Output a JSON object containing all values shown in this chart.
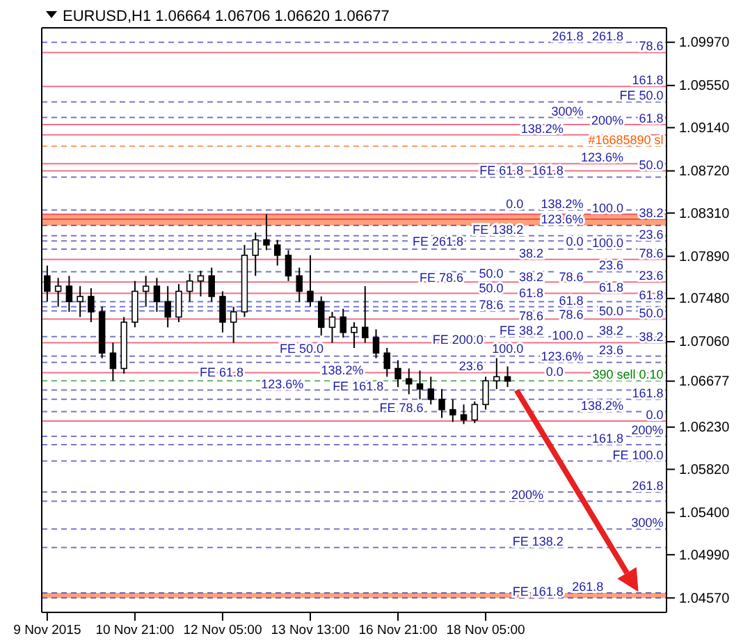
{
  "chart_data": {
    "type": "candlestick",
    "title": "EURUSD,H1  1.06664 1.06706 1.06620 1.06677",
    "categories": [
      "9 Nov 2015",
      null,
      null,
      null,
      null,
      null,
      null,
      null,
      "10 Nov 21:00",
      null,
      null,
      null,
      null,
      null,
      null,
      null,
      "12 Nov 05:00",
      null,
      null,
      null,
      null,
      null,
      null,
      null,
      "13 Nov 13:00",
      null,
      null,
      null,
      null,
      null,
      null,
      null,
      "16 Nov 21:00",
      null,
      null,
      null,
      null,
      null,
      null,
      null,
      "18 Nov 05:00",
      null,
      null,
      null,
      null,
      null,
      null,
      null,
      null,
      null,
      null,
      null,
      null,
      null,
      null,
      null,
      null
    ],
    "ohlc": [
      [
        1.077,
        1.078,
        1.0745,
        1.0755
      ],
      [
        1.0755,
        1.0768,
        1.074,
        1.076
      ],
      [
        1.076,
        1.077,
        1.0735,
        1.0745
      ],
      [
        1.0745,
        1.076,
        1.073,
        1.075
      ],
      [
        1.075,
        1.0758,
        1.0725,
        1.0735
      ],
      [
        1.0735,
        1.074,
        1.069,
        1.0695
      ],
      [
        1.0695,
        1.0705,
        1.0668,
        1.068
      ],
      [
        1.068,
        1.073,
        1.0675,
        1.0725
      ],
      [
        1.0725,
        1.0765,
        1.072,
        1.0755
      ],
      [
        1.0755,
        1.077,
        1.074,
        1.076
      ],
      [
        1.076,
        1.0768,
        1.0735,
        1.0745
      ],
      [
        1.0745,
        1.076,
        1.072,
        1.073
      ],
      [
        1.073,
        1.0762,
        1.0725,
        1.0755
      ],
      [
        1.0755,
        1.0772,
        1.0745,
        1.0765
      ],
      [
        1.0765,
        1.0775,
        1.075,
        1.077
      ],
      [
        1.077,
        1.0778,
        1.0745,
        1.075
      ],
      [
        1.075,
        1.0755,
        1.0715,
        1.0725
      ],
      [
        1.0725,
        1.074,
        1.0705,
        1.0735
      ],
      [
        1.0735,
        1.08,
        1.073,
        1.079
      ],
      [
        1.079,
        1.0812,
        1.077,
        1.0805
      ],
      [
        1.0805,
        1.083,
        1.0795,
        1.08
      ],
      [
        1.08,
        1.0805,
        1.078,
        1.079
      ],
      [
        1.079,
        1.0795,
        1.0765,
        1.077
      ],
      [
        1.077,
        1.0778,
        1.0745,
        1.0755
      ],
      [
        1.0755,
        1.079,
        1.074,
        1.0745
      ],
      [
        1.0745,
        1.075,
        1.0712,
        1.072
      ],
      [
        1.072,
        1.0735,
        1.0705,
        1.073
      ],
      [
        1.073,
        1.0738,
        1.071,
        1.0715
      ],
      [
        1.0715,
        1.0725,
        1.07,
        1.072
      ],
      [
        1.072,
        1.076,
        1.0705,
        1.071
      ],
      [
        1.071,
        1.0718,
        1.069,
        1.0695
      ],
      [
        1.0695,
        1.07,
        1.0672,
        1.068
      ],
      [
        1.068,
        1.0688,
        1.0662,
        1.067
      ],
      [
        1.067,
        1.068,
        1.0655,
        1.0665
      ],
      [
        1.0665,
        1.0678,
        1.065,
        1.066
      ],
      [
        1.066,
        1.0672,
        1.0645,
        1.065
      ],
      [
        1.065,
        1.066,
        1.0632,
        1.064
      ],
      [
        1.064,
        1.065,
        1.0628,
        1.0635
      ],
      [
        1.0635,
        1.0645,
        1.0626,
        1.063
      ],
      [
        1.063,
        1.0648,
        1.0627,
        1.0645
      ],
      [
        1.0645,
        1.0672,
        1.064,
        1.0668
      ],
      [
        1.0668,
        1.069,
        1.066,
        1.0672
      ],
      [
        1.0672,
        1.0682,
        1.0662,
        1.06677
      ],
      null,
      null,
      null,
      null,
      null,
      null,
      null,
      null,
      null,
      null,
      null,
      null,
      null,
      null
    ],
    "ylim": [
      1.0443,
      1.1011
    ],
    "yticks": [
      {
        "value": 1.0997,
        "label": "1.09970"
      },
      {
        "value": 1.0955,
        "label": "1.09550"
      },
      {
        "value": 1.0914,
        "label": "1.09140"
      },
      {
        "value": 1.0872,
        "label": "1.08720"
      },
      {
        "value": 1.0831,
        "label": "1.08310"
      },
      {
        "value": 1.0789,
        "label": "1.07890"
      },
      {
        "value": 1.0748,
        "label": "1.07480"
      },
      {
        "value": 1.0706,
        "label": "1.07060"
      },
      {
        "value": 1.06677,
        "label": "1.06677"
      },
      {
        "value": 1.0623,
        "label": "1.06230"
      },
      {
        "value": 1.0582,
        "label": "1.05820"
      },
      {
        "value": 1.054,
        "label": "1.05400"
      },
      {
        "value": 1.0499,
        "label": "1.04990"
      },
      {
        "value": 1.0457,
        "label": "1.04570"
      }
    ],
    "bands": [
      {
        "axis": "y",
        "from": 1.0819,
        "to": 1.083,
        "color": "#ffa07a"
      },
      {
        "axis": "y",
        "from": 1.0457,
        "to": 1.0462,
        "color": "#ffa07a"
      }
    ],
    "ref_lines": [
      {
        "axis": "y",
        "value": 1.0896,
        "label": "#16685890 sl",
        "color": "#ff5a00",
        "line_style": "dashed"
      },
      {
        "axis": "y",
        "value": 1.0668,
        "label": "390 sell 0.10",
        "color": "#008000",
        "line_style": "dashed"
      },
      {
        "axis": "y",
        "value": 1.0987,
        "color": "#e8103a",
        "line_style": "solid"
      },
      {
        "axis": "y",
        "value": 1.0917,
        "color": "#e8103a",
        "line_style": "solid"
      },
      {
        "axis": "y",
        "value": 1.0872,
        "color": "#e8103a",
        "line_style": "solid"
      },
      {
        "axis": "y",
        "value": 1.0825,
        "color": "#e8103a",
        "line_style": "solid"
      },
      {
        "axis": "y",
        "value": 1.0764,
        "color": "#e8103a",
        "line_style": "solid"
      },
      {
        "axis": "y",
        "value": 1.0954,
        "color": "#e8103a",
        "line_style": "solid"
      },
      {
        "axis": "y",
        "value": 1.0907,
        "color": "#e8103a",
        "line_style": "solid"
      },
      {
        "axis": "y",
        "value": 1.0879,
        "color": "#e8103a",
        "line_style": "solid"
      },
      {
        "axis": "y",
        "value": 1.083,
        "color": "#e8103a",
        "line_style": "solid"
      },
      {
        "axis": "y",
        "value": 1.0786,
        "color": "#e8103a",
        "line_style": "solid"
      },
      {
        "axis": "y",
        "value": 1.0753,
        "color": "#e8103a",
        "line_style": "solid"
      },
      {
        "axis": "y",
        "value": 1.0728,
        "color": "#e8103a",
        "line_style": "solid"
      },
      {
        "axis": "y",
        "value": 1.0705,
        "color": "#e8103a",
        "line_style": "solid"
      },
      {
        "axis": "y",
        "value": 1.0676,
        "color": "#e8103a",
        "line_style": "solid"
      },
      {
        "axis": "y",
        "value": 1.0629,
        "color": "#e8103a",
        "line_style": "solid"
      },
      {
        "axis": "y",
        "value": 1.0997,
        "color": "#1c1ca8",
        "line_style": "dashed"
      },
      {
        "axis": "y",
        "value": 1.0866,
        "color": "#1c1ca8",
        "line_style": "dashed"
      },
      {
        "axis": "y",
        "value": 1.0834,
        "color": "#1c1ca8",
        "line_style": "dashed"
      },
      {
        "axis": "y",
        "value": 1.0819,
        "color": "#1c1ca8",
        "line_style": "dashed"
      },
      {
        "axis": "y",
        "value": 1.0796,
        "color": "#1c1ca8",
        "line_style": "dashed"
      },
      {
        "axis": "y",
        "value": 1.0745,
        "color": "#1c1ca8",
        "line_style": "dashed"
      },
      {
        "axis": "y",
        "value": 1.0711,
        "color": "#1c1ca8",
        "line_style": "dashed"
      },
      {
        "axis": "y",
        "value": 1.0692,
        "color": "#1c1ca8",
        "line_style": "dashed"
      },
      {
        "axis": "y",
        "value": 1.0774,
        "color": "#1c1ca8",
        "line_style": "dashed"
      },
      {
        "axis": "y",
        "value": 1.074,
        "color": "#1c1ca8",
        "line_style": "dashed"
      },
      {
        "axis": "y",
        "value": 1.0686,
        "color": "#1c1ca8",
        "line_style": "dashed"
      },
      {
        "axis": "y",
        "value": 1.065,
        "color": "#1c1ca8",
        "line_style": "dashed"
      },
      {
        "axis": "y",
        "value": 1.0614,
        "color": "#1c1ca8",
        "line_style": "dashed"
      },
      {
        "axis": "y",
        "value": 1.056,
        "color": "#1c1ca8",
        "line_style": "dashed"
      },
      {
        "axis": "y",
        "value": 1.0524,
        "color": "#1c1ca8",
        "line_style": "dashed"
      },
      {
        "axis": "y",
        "value": 1.0804,
        "color": "#1c1ca8",
        "line_style": "dashed"
      },
      {
        "axis": "y",
        "value": 1.0659,
        "color": "#1c1ca8",
        "line_style": "dashed"
      },
      {
        "axis": "y",
        "value": 1.0638,
        "color": "#1c1ca8",
        "line_style": "dashed"
      },
      {
        "axis": "y",
        "value": 1.0606,
        "color": "#1c1ca8",
        "line_style": "dashed"
      },
      {
        "axis": "y",
        "value": 1.0551,
        "color": "#1c1ca8",
        "line_style": "dashed"
      },
      {
        "axis": "y",
        "value": 1.0462,
        "color": "#1c1ca8",
        "line_style": "dashed"
      },
      {
        "axis": "y",
        "value": 1.0939,
        "color": "#1c1ca8",
        "line_style": "dashed"
      },
      {
        "axis": "y",
        "value": 1.0924,
        "color": "#1c1ca8",
        "line_style": "dashed"
      },
      {
        "axis": "y",
        "value": 1.0809,
        "color": "#1c1ca8",
        "line_style": "dashed"
      },
      {
        "axis": "y",
        "value": 1.0736,
        "color": "#1c1ca8",
        "line_style": "dashed"
      },
      {
        "axis": "y",
        "value": 1.059,
        "color": "#1c1ca8",
        "line_style": "dashed"
      },
      {
        "axis": "y",
        "value": 1.0506,
        "color": "#1c1ca8",
        "line_style": "dashed"
      },
      {
        "axis": "y",
        "value": 1.0457,
        "color": "#1c1ca8",
        "line_style": "dashed"
      }
    ],
    "annotations": [
      {
        "text": "78.6",
        "y": 1.0987
      },
      {
        "text": "61.8",
        "y": 1.0917
      },
      {
        "text": "50.0",
        "y": 1.0872
      },
      {
        "text": "38.2",
        "y": 1.0825
      },
      {
        "text": "23.6",
        "y": 1.0764
      },
      {
        "text": "0.0",
        "y": 1.0671
      },
      {
        "text": "161.8",
        "y": 1.0954
      },
      {
        "text": "138.2%",
        "y": 1.0907
      },
      {
        "text": "123.6%",
        "y": 1.0879
      },
      {
        "text": "100.0",
        "y": 1.083
      },
      {
        "text": "78.6",
        "y": 1.0786
      },
      {
        "text": "61.8",
        "y": 1.0753
      },
      {
        "text": "50.0",
        "y": 1.0728
      },
      {
        "text": "38.2",
        "y": 1.0705
      },
      {
        "text": "23.6",
        "y": 1.0676
      },
      {
        "text": "0.0",
        "y": 1.0629
      },
      {
        "text": "261.8",
        "y": 1.0997
      },
      {
        "text": "200%",
        "y": 1.0915
      },
      {
        "text": "161.8",
        "y": 1.0866
      },
      {
        "text": "138.2%",
        "y": 1.0834
      },
      {
        "text": "123.6%",
        "y": 1.0819
      },
      {
        "text": "100.0",
        "y": 1.0796
      },
      {
        "text": "78.6",
        "y": 1.0763
      },
      {
        "text": "61.8",
        "y": 1.0745
      },
      {
        "text": "50.0",
        "y": 1.073
      },
      {
        "text": "38.2",
        "y": 1.0711
      },
      {
        "text": "23.6",
        "y": 1.0692
      },
      {
        "text": "0.0",
        "y": 1.0797
      },
      {
        "text": "23.6",
        "y": 1.0774
      },
      {
        "text": "38.2",
        "y": 1.0763
      },
      {
        "text": "50.0",
        "y": 1.0752
      },
      {
        "text": "61.8",
        "y": 1.074
      },
      {
        "text": "78.6",
        "y": 1.0726
      },
      {
        "text": "100.0",
        "y": 1.0706
      },
      {
        "text": "123.6%",
        "y": 1.0686
      },
      {
        "text": "138.2%",
        "y": 1.0672
      },
      {
        "text": "161.8",
        "y": 1.065
      },
      {
        "text": "200%",
        "y": 1.0614
      },
      {
        "text": "261.8",
        "y": 1.056
      },
      {
        "text": "300%",
        "y": 1.0524
      },
      {
        "text": "0.0",
        "y": 1.0834
      },
      {
        "text": "23.6",
        "y": 1.0804
      },
      {
        "text": "38.2",
        "y": 1.0786
      },
      {
        "text": "50.0",
        "y": 1.0766
      },
      {
        "text": "61.8",
        "y": 1.0747
      },
      {
        "text": "78.6",
        "y": 1.0725
      },
      {
        "text": "100.0",
        "y": 1.0693
      },
      {
        "text": "123.6%",
        "y": 1.0659
      },
      {
        "text": "138.2%",
        "y": 1.0638
      },
      {
        "text": "161.8",
        "y": 1.0606
      },
      {
        "text": "200%",
        "y": 1.0551
      },
      {
        "text": "261.8",
        "y": 1.0462
      },
      {
        "text": "261.8",
        "y": 1.0997
      },
      {
        "text": "FE 50.0",
        "y": 1.0939
      },
      {
        "text": "300%",
        "y": 1.0924
      },
      {
        "text": "FE 61.8",
        "y": 1.0866
      },
      {
        "text": "FE 138.2",
        "y": 1.0809
      },
      {
        "text": "FE 261.8",
        "y": 1.0797
      },
      {
        "text": "FE 78.6",
        "y": 1.0762
      },
      {
        "text": "78.6",
        "y": 1.0736
      },
      {
        "text": "FE 38.2",
        "y": 1.0711
      },
      {
        "text": "FE 200.0",
        "y": 1.0702
      },
      {
        "text": "FE 50.0",
        "y": 1.0693
      },
      {
        "text": "FE 61.8",
        "y": 1.067
      },
      {
        "text": "FE 161.8",
        "y": 1.0657
      },
      {
        "text": "FE 78.6",
        "y": 1.0636
      },
      {
        "text": "FE 100.0",
        "y": 1.059
      },
      {
        "text": "FE 138.2",
        "y": 1.0506
      },
      {
        "text": "FE 161.8",
        "y": 1.0457
      }
    ]
  }
}
